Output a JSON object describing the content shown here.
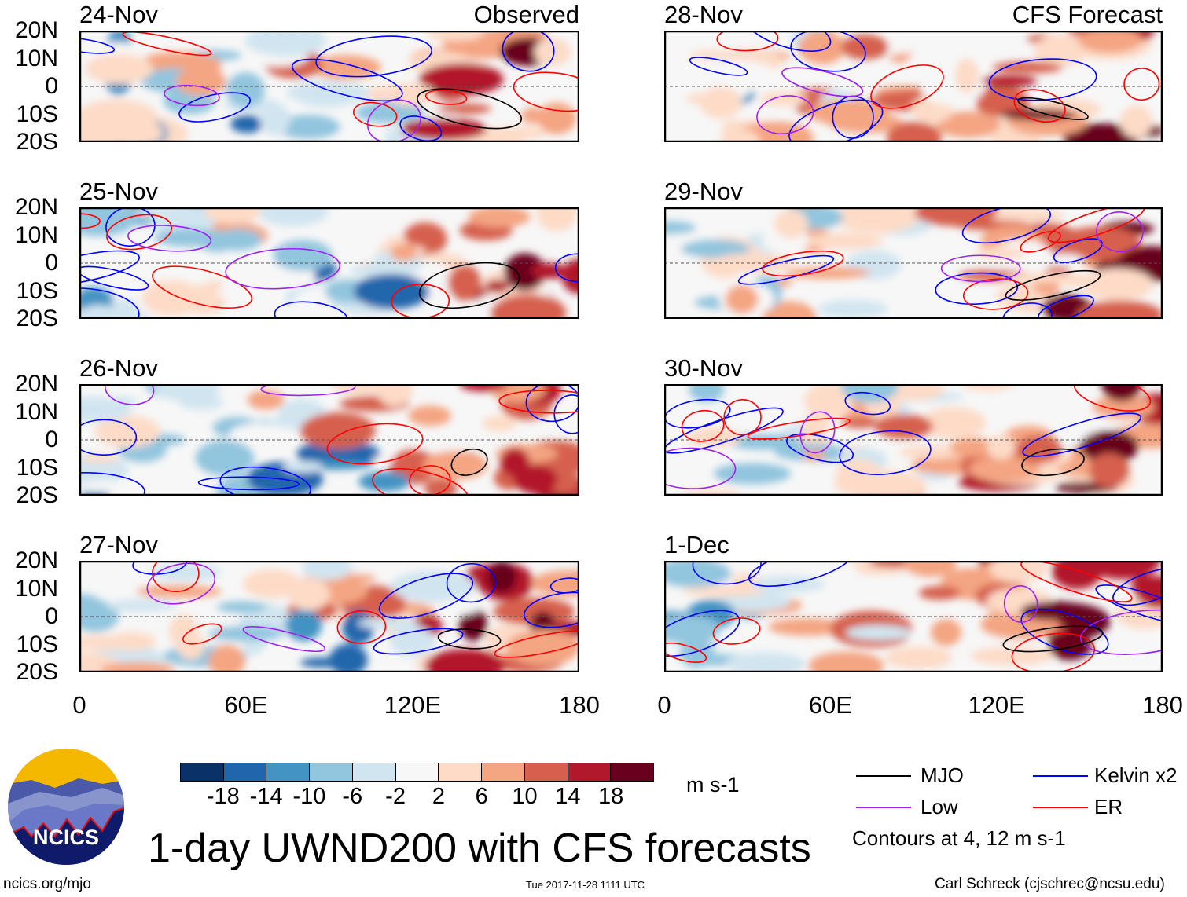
{
  "title": "1-day UWND200 with CFS forecasts",
  "panels": [
    {
      "date": "24-Nov",
      "tag": "Observed",
      "column": "left",
      "row": 0
    },
    {
      "date": "25-Nov",
      "tag": "",
      "column": "left",
      "row": 1
    },
    {
      "date": "26-Nov",
      "tag": "",
      "column": "left",
      "row": 2
    },
    {
      "date": "27-Nov",
      "tag": "",
      "column": "left",
      "row": 3
    },
    {
      "date": "28-Nov",
      "tag": "CFS Forecast",
      "column": "right",
      "row": 0
    },
    {
      "date": "29-Nov",
      "tag": "",
      "column": "right",
      "row": 1
    },
    {
      "date": "30-Nov",
      "tag": "",
      "column": "right",
      "row": 2
    },
    {
      "date": "1-Dec",
      "tag": "",
      "column": "right",
      "row": 3
    }
  ],
  "y_axis_labels": [
    "20N",
    "10N",
    "0",
    "10S",
    "20S"
  ],
  "x_axis_labels": [
    "0",
    "60E",
    "120E",
    "180"
  ],
  "colorbar": {
    "labels": [
      "-18",
      "-14",
      "-10",
      "-6",
      "-2",
      "2",
      "6",
      "10",
      "14",
      "18"
    ],
    "colors": [
      "#0a3268",
      "#2166ac",
      "#4393c3",
      "#92c5de",
      "#d1e5f0",
      "#f7f7f7",
      "#fddbc7",
      "#f4a582",
      "#d6604d",
      "#b2182b",
      "#67001f"
    ],
    "units": "m s-1"
  },
  "legend": {
    "items": [
      {
        "label": "MJO",
        "color": "#000000"
      },
      {
        "label": "Kelvin x2",
        "color": "#0000ff"
      },
      {
        "label": "Low",
        "color": "#a020f0"
      },
      {
        "label": "ER",
        "color": "#ff0000"
      }
    ],
    "note": "Contours at 4, 12 m s-1"
  },
  "footer": {
    "url": "ncics.org/mjo",
    "timestamp": "Tue 2017-11-28 1111 UTC",
    "credit": "Carl Schreck (cjschrec@ncsu.edu)",
    "logo_text": "NCICS"
  }
}
